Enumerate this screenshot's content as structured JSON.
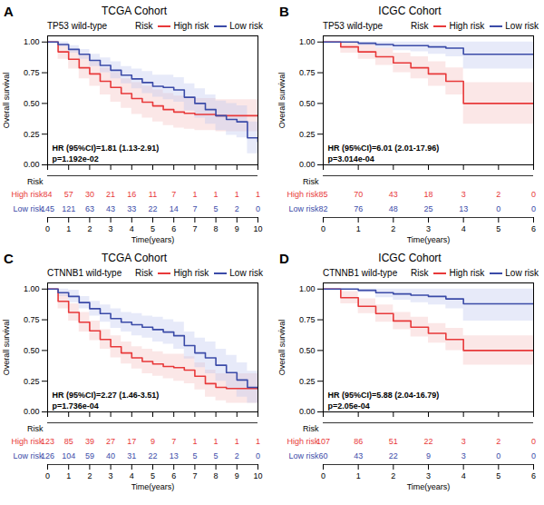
{
  "chart_data": [
    {
      "type": "step",
      "panel_label": "A",
      "title": "TCGA Cohort",
      "subtitle": "TP53 wild-type",
      "annotations": [
        "HR (95%CI)=1.81 (1.13-2.91)",
        "p=1.192e-02"
      ],
      "xlabel": "Time(years)",
      "ylabel": "Overall survival",
      "xlim": [
        0,
        10
      ],
      "xticks": [
        0,
        1,
        2,
        3,
        4,
        5,
        6,
        7,
        8,
        9,
        10
      ],
      "ylim": [
        0,
        1.05
      ],
      "yticks": [
        {
          "value": 0,
          "label": "0.00"
        },
        {
          "value": 0.25,
          "label": "0.25"
        },
        {
          "value": 0.5,
          "label": "0.50"
        },
        {
          "value": 0.75,
          "label": "0.75"
        },
        {
          "value": 1,
          "label": "1.00"
        }
      ],
      "grid": false,
      "legend": "upper right",
      "legend_title": "Risk",
      "risk_table_title": "Risk",
      "series": [
        {
          "name": "High risk",
          "color": "#E8393A",
          "fill_color": "#F5C0C0",
          "x": [
            0,
            0.5,
            1.0,
            1.5,
            2.0,
            2.5,
            3.0,
            3.5,
            4.0,
            4.5,
            5.0,
            5.5,
            6.0,
            6.5,
            7.0,
            7.5,
            8.0,
            8.5,
            9.0,
            9.5,
            10.0
          ],
          "values": [
            1.0,
            0.92,
            0.86,
            0.79,
            0.74,
            0.68,
            0.63,
            0.58,
            0.54,
            0.51,
            0.48,
            0.45,
            0.43,
            0.42,
            0.41,
            0.41,
            0.4,
            0.4,
            0.4,
            0.4,
            0.4
          ],
          "lo": [
            1.0,
            0.86,
            0.78,
            0.7,
            0.64,
            0.57,
            0.51,
            0.46,
            0.41,
            0.38,
            0.35,
            0.32,
            0.3,
            0.29,
            0.28,
            0.28,
            0.27,
            0.27,
            0.27,
            0.27,
            0.27
          ],
          "hi": [
            1.0,
            0.98,
            0.94,
            0.89,
            0.84,
            0.79,
            0.75,
            0.7,
            0.67,
            0.64,
            0.61,
            0.58,
            0.56,
            0.55,
            0.54,
            0.54,
            0.53,
            0.53,
            0.53,
            0.53,
            0.53
          ],
          "at_risk": [
            84,
            57,
            30,
            21,
            16,
            11,
            7,
            1,
            1,
            1,
            1
          ]
        },
        {
          "name": "Low risk",
          "color": "#3B4BA8",
          "fill_color": "#C0C8EE",
          "x": [
            0,
            0.5,
            1.0,
            1.5,
            2.0,
            2.5,
            3.0,
            3.5,
            4.0,
            4.5,
            5.0,
            5.5,
            6.0,
            6.5,
            7.0,
            7.5,
            8.0,
            8.5,
            9.0,
            9.5,
            10.0
          ],
          "values": [
            1.0,
            0.98,
            0.94,
            0.9,
            0.85,
            0.81,
            0.77,
            0.73,
            0.7,
            0.67,
            0.64,
            0.63,
            0.61,
            0.55,
            0.5,
            0.45,
            0.4,
            0.37,
            0.35,
            0.22,
            0.19
          ],
          "lo": [
            1.0,
            0.96,
            0.91,
            0.86,
            0.8,
            0.75,
            0.7,
            0.66,
            0.62,
            0.58,
            0.55,
            0.53,
            0.51,
            0.44,
            0.38,
            0.33,
            0.28,
            0.24,
            0.22,
            0.09,
            0.06
          ],
          "hi": [
            1.0,
            1.0,
            0.97,
            0.94,
            0.9,
            0.87,
            0.84,
            0.8,
            0.78,
            0.76,
            0.73,
            0.73,
            0.71,
            0.66,
            0.62,
            0.57,
            0.52,
            0.5,
            0.48,
            0.35,
            0.32
          ],
          "at_risk": [
            145,
            121,
            63,
            43,
            33,
            22,
            14,
            7,
            5,
            2,
            0
          ]
        }
      ]
    },
    {
      "type": "step",
      "panel_label": "B",
      "title": "ICGC Cohort",
      "subtitle": "TP53 wild-type",
      "annotations": [
        "HR (95%CI)=6.01 (2.01-17.96)",
        "p=3.014e-04"
      ],
      "xlabel": "Time(years)",
      "ylabel": "Overall survival",
      "xlim": [
        0,
        6
      ],
      "xticks": [
        0,
        1,
        2,
        3,
        4,
        5,
        6
      ],
      "ylim": [
        0,
        1.05
      ],
      "yticks": [
        {
          "value": 0,
          "label": "0.00"
        },
        {
          "value": 0.25,
          "label": "0.25"
        },
        {
          "value": 0.5,
          "label": "0.50"
        },
        {
          "value": 0.75,
          "label": "0.75"
        },
        {
          "value": 1,
          "label": "1.00"
        }
      ],
      "grid": false,
      "legend": "upper right",
      "legend_title": "Risk",
      "risk_table_title": "Risk",
      "series": [
        {
          "name": "High risk",
          "color": "#E8393A",
          "fill_color": "#F5C0C0",
          "x": [
            0,
            0.5,
            1.0,
            1.5,
            2.0,
            2.5,
            3.0,
            3.5,
            4.0,
            4.5,
            5.0,
            5.5,
            6.0
          ],
          "values": [
            1.0,
            0.96,
            0.92,
            0.88,
            0.83,
            0.79,
            0.74,
            0.68,
            0.5,
            0.5,
            0.5,
            0.5,
            0.5
          ],
          "lo": [
            1.0,
            0.91,
            0.86,
            0.81,
            0.75,
            0.7,
            0.64,
            0.57,
            0.33,
            0.33,
            0.33,
            0.33,
            0.33
          ],
          "hi": [
            1.0,
            1.0,
            0.98,
            0.95,
            0.91,
            0.88,
            0.84,
            0.79,
            0.67,
            0.67,
            0.67,
            0.67,
            0.67
          ],
          "at_risk": [
            85,
            70,
            43,
            18,
            3,
            2,
            0
          ]
        },
        {
          "name": "Low risk",
          "color": "#3B4BA8",
          "fill_color": "#C0C8EE",
          "x": [
            0,
            0.5,
            1.0,
            1.5,
            2.0,
            2.5,
            3.0,
            3.5,
            4.0,
            4.5,
            5.0,
            5.5,
            6.0
          ],
          "values": [
            1.0,
            1.0,
            0.99,
            0.98,
            0.97,
            0.97,
            0.96,
            0.95,
            0.9,
            0.9,
            0.9,
            0.9,
            0.9
          ],
          "lo": [
            1.0,
            1.0,
            0.97,
            0.95,
            0.93,
            0.92,
            0.9,
            0.88,
            0.78,
            0.78,
            0.78,
            0.78,
            0.78
          ],
          "hi": [
            1.0,
            1.0,
            1.0,
            1.0,
            1.0,
            1.0,
            1.0,
            1.0,
            1.0,
            1.0,
            1.0,
            1.0,
            1.0
          ],
          "at_risk": [
            82,
            76,
            48,
            25,
            13,
            0,
            0
          ]
        }
      ]
    },
    {
      "type": "step",
      "panel_label": "C",
      "title": "TCGA Cohort",
      "subtitle": "CTNNB1 wild-type",
      "annotations": [
        "HR (95%CI)=2.27 (1.46-3.51)",
        "p=1.736e-04"
      ],
      "xlabel": "Time(years)",
      "ylabel": "Overall survival",
      "xlim": [
        0,
        10
      ],
      "xticks": [
        0,
        1,
        2,
        3,
        4,
        5,
        6,
        7,
        8,
        9,
        10
      ],
      "ylim": [
        0,
        1.05
      ],
      "yticks": [
        {
          "value": 0,
          "label": "0.00"
        },
        {
          "value": 0.25,
          "label": "0.25"
        },
        {
          "value": 0.5,
          "label": "0.50"
        },
        {
          "value": 0.75,
          "label": "0.75"
        },
        {
          "value": 1,
          "label": "1.00"
        }
      ],
      "grid": false,
      "legend": "upper right",
      "legend_title": "Risk",
      "risk_table_title": "Risk",
      "series": [
        {
          "name": "High risk",
          "color": "#E8393A",
          "fill_color": "#F5C0C0",
          "x": [
            0,
            0.5,
            1.0,
            1.5,
            2.0,
            2.5,
            3.0,
            3.5,
            4.0,
            4.5,
            5.0,
            5.5,
            6.0,
            6.5,
            7.0,
            7.5,
            8.0,
            8.5,
            9.0,
            9.5,
            10.0
          ],
          "values": [
            1.0,
            0.9,
            0.81,
            0.73,
            0.66,
            0.59,
            0.53,
            0.48,
            0.44,
            0.41,
            0.39,
            0.37,
            0.36,
            0.34,
            0.29,
            0.23,
            0.2,
            0.19,
            0.19,
            0.19,
            0.19
          ],
          "lo": [
            1.0,
            0.84,
            0.74,
            0.65,
            0.58,
            0.51,
            0.44,
            0.39,
            0.35,
            0.31,
            0.29,
            0.27,
            0.25,
            0.23,
            0.18,
            0.12,
            0.09,
            0.07,
            0.07,
            0.07,
            0.07
          ],
          "hi": [
            1.0,
            0.96,
            0.88,
            0.81,
            0.74,
            0.67,
            0.62,
            0.57,
            0.53,
            0.51,
            0.49,
            0.47,
            0.47,
            0.45,
            0.4,
            0.34,
            0.31,
            0.31,
            0.31,
            0.31,
            0.31
          ],
          "at_risk": [
            123,
            85,
            39,
            27,
            17,
            9,
            7,
            1,
            1,
            1,
            1
          ]
        },
        {
          "name": "Low risk",
          "color": "#3B4BA8",
          "fill_color": "#C0C8EE",
          "x": [
            0,
            0.5,
            1.0,
            1.5,
            2.0,
            2.5,
            3.0,
            3.5,
            4.0,
            4.5,
            5.0,
            5.5,
            6.0,
            6.5,
            7.0,
            7.5,
            8.0,
            8.5,
            9.0,
            9.5,
            10.0
          ],
          "values": [
            1.0,
            0.97,
            0.94,
            0.89,
            0.84,
            0.8,
            0.76,
            0.73,
            0.71,
            0.69,
            0.67,
            0.65,
            0.62,
            0.54,
            0.48,
            0.44,
            0.38,
            0.32,
            0.26,
            0.2,
            0.19
          ],
          "lo": [
            1.0,
            0.94,
            0.89,
            0.84,
            0.78,
            0.73,
            0.68,
            0.65,
            0.62,
            0.6,
            0.57,
            0.55,
            0.51,
            0.43,
            0.36,
            0.31,
            0.25,
            0.18,
            0.12,
            0.07,
            0.05
          ],
          "hi": [
            1.0,
            1.0,
            0.99,
            0.94,
            0.9,
            0.87,
            0.84,
            0.81,
            0.8,
            0.78,
            0.77,
            0.75,
            0.73,
            0.65,
            0.6,
            0.57,
            0.51,
            0.46,
            0.4,
            0.33,
            0.33
          ],
          "at_risk": [
            126,
            104,
            59,
            40,
            31,
            22,
            13,
            5,
            5,
            2,
            0
          ]
        }
      ]
    },
    {
      "type": "step",
      "panel_label": "D",
      "title": "ICGC Cohort",
      "subtitle": "CTNNB1 wild-type",
      "annotations": [
        "HR (95%CI)=5.88 (2.04-16.79)",
        "p=2.05e-04"
      ],
      "xlabel": "Time(years)",
      "ylabel": "Overall survival",
      "xlim": [
        0,
        6
      ],
      "xticks": [
        0,
        1,
        2,
        3,
        4,
        5,
        6
      ],
      "ylim": [
        0,
        1.05
      ],
      "yticks": [
        {
          "value": 0,
          "label": "0.00"
        },
        {
          "value": 0.25,
          "label": "0.25"
        },
        {
          "value": 0.5,
          "label": "0.50"
        },
        {
          "value": 0.75,
          "label": "0.75"
        },
        {
          "value": 1,
          "label": "1.00"
        }
      ],
      "grid": false,
      "legend": "upper right",
      "legend_title": "Risk",
      "risk_table_title": "Risk",
      "series": [
        {
          "name": "High risk",
          "color": "#E8393A",
          "fill_color": "#F5C0C0",
          "x": [
            0,
            0.5,
            1.0,
            1.5,
            2.0,
            2.5,
            3.0,
            3.5,
            4.0,
            4.5,
            5.0,
            5.5,
            6.0
          ],
          "values": [
            1.0,
            0.93,
            0.86,
            0.8,
            0.74,
            0.69,
            0.64,
            0.59,
            0.5,
            0.5,
            0.5,
            0.5,
            0.5
          ],
          "lo": [
            1.0,
            0.88,
            0.8,
            0.73,
            0.67,
            0.61,
            0.56,
            0.5,
            0.38,
            0.38,
            0.38,
            0.38,
            0.38
          ],
          "hi": [
            1.0,
            0.98,
            0.92,
            0.87,
            0.81,
            0.77,
            0.72,
            0.68,
            0.62,
            0.62,
            0.62,
            0.62,
            0.62
          ],
          "at_risk": [
            107,
            86,
            51,
            22,
            3,
            2,
            0
          ]
        },
        {
          "name": "Low risk",
          "color": "#3B4BA8",
          "fill_color": "#C0C8EE",
          "x": [
            0,
            0.5,
            1.0,
            1.5,
            2.0,
            2.5,
            3.0,
            3.5,
            4.0,
            4.5,
            5.0,
            5.5,
            6.0
          ],
          "values": [
            1.0,
            1.0,
            0.99,
            0.97,
            0.96,
            0.95,
            0.94,
            0.92,
            0.88,
            0.88,
            0.88,
            0.88,
            0.88
          ],
          "lo": [
            1.0,
            1.0,
            0.97,
            0.93,
            0.91,
            0.89,
            0.87,
            0.84,
            0.74,
            0.74,
            0.74,
            0.74,
            0.74
          ],
          "hi": [
            1.0,
            1.0,
            1.0,
            1.0,
            1.0,
            1.0,
            1.0,
            1.0,
            1.0,
            1.0,
            1.0,
            1.0,
            1.0
          ],
          "at_risk": [
            60,
            43,
            22,
            9,
            3,
            0,
            0
          ]
        }
      ]
    }
  ]
}
